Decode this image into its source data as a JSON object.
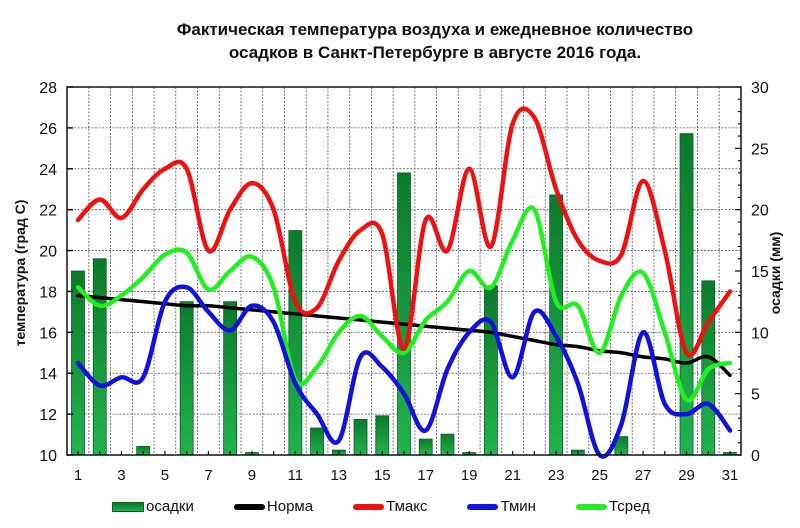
{
  "title": {
    "line1": "Фактическая температура воздуха и ежедневное количество",
    "line2": "осадков в Санкт-Петербурге  в августе  2016 года."
  },
  "axes": {
    "left_label": "температура (град С)",
    "right_label": "осадки (мм)",
    "left_ticks": [
      "10",
      "12",
      "14",
      "16",
      "18",
      "20",
      "22",
      "24",
      "26",
      "28"
    ],
    "right_ticks": [
      "0",
      "5",
      "10",
      "15",
      "20",
      "25",
      "30"
    ],
    "x_ticks": [
      "1",
      "3",
      "5",
      "7",
      "9",
      "11",
      "13",
      "15",
      "17",
      "19",
      "21",
      "23",
      "25",
      "27",
      "29",
      "31"
    ]
  },
  "legend": [
    {
      "label": "осадки",
      "color": "#159a3c",
      "kind": "bar"
    },
    {
      "label": "Норма",
      "color": "#000000",
      "kind": "line"
    },
    {
      "label": "Тмакс",
      "color": "#ee1111",
      "kind": "line"
    },
    {
      "label": "Тмин",
      "color": "#1111dd",
      "kind": "line"
    },
    {
      "label": "Тсред",
      "color": "#22ee22",
      "kind": "line"
    }
  ],
  "chart_data": {
    "type": "bar+line",
    "title": "Фактическая температура воздуха и ежедневное количество осадков в Санкт-Петербурге в августе 2016 года.",
    "xlabel": "",
    "ylabel": "температура (град С)",
    "y2label": "осадки (мм)",
    "ylim": [
      10,
      28
    ],
    "y2lim": [
      0,
      30
    ],
    "grid": true,
    "legend_position": "bottom",
    "x": [
      1,
      2,
      3,
      4,
      5,
      6,
      7,
      8,
      9,
      10,
      11,
      12,
      13,
      14,
      15,
      16,
      17,
      18,
      19,
      20,
      21,
      22,
      23,
      24,
      25,
      26,
      27,
      28,
      29,
      30,
      31
    ],
    "series": [
      {
        "name": "осадки",
        "type": "bar",
        "axis": "right",
        "color": "#159a3c",
        "values": [
          15,
          16,
          0,
          0.7,
          0,
          12.5,
          0,
          12.5,
          0.2,
          0,
          18.3,
          2.2,
          0.4,
          2.9,
          3.2,
          23,
          1.3,
          1.7,
          0.2,
          13.8,
          0,
          0,
          21.2,
          0.4,
          0,
          1.5,
          0,
          0,
          26.2,
          14.2,
          0.2
        ]
      },
      {
        "name": "Норма",
        "type": "line",
        "axis": "left",
        "color": "#000000",
        "values": [
          17.8,
          17.7,
          17.6,
          17.5,
          17.4,
          17.3,
          17.3,
          17.2,
          17.1,
          17.0,
          16.9,
          16.8,
          16.7,
          16.6,
          16.5,
          16.4,
          16.3,
          16.2,
          16.1,
          16.0,
          15.8,
          15.6,
          15.4,
          15.3,
          15.1,
          15.0,
          14.8,
          14.7,
          14.5,
          14.8,
          13.9
        ]
      },
      {
        "name": "Тмакс",
        "type": "line",
        "axis": "left",
        "color": "#ee1111",
        "values": [
          21.5,
          22.5,
          21.6,
          23.0,
          24.0,
          24.0,
          20.0,
          22.0,
          23.3,
          22.0,
          17.5,
          17.2,
          19.5,
          21.0,
          20.8,
          15.2,
          21.5,
          20.0,
          24.0,
          20.2,
          26.2,
          26.5,
          23.0,
          20.5,
          19.5,
          19.8,
          23.4,
          20.0,
          15.0,
          16.5,
          18.0
        ]
      },
      {
        "name": "Тмин",
        "type": "line",
        "axis": "left",
        "color": "#1111dd",
        "values": [
          14.5,
          13.4,
          13.8,
          13.8,
          17.5,
          18.2,
          17.0,
          16.1,
          17.3,
          16.5,
          13.5,
          12.0,
          10.7,
          14.8,
          14.3,
          13.0,
          11.2,
          14.2,
          16.0,
          16.5,
          13.8,
          17.0,
          15.8,
          13.5,
          10.0,
          11.5,
          16.0,
          12.5,
          12.0,
          12.5,
          11.2
        ]
      },
      {
        "name": "Тсред",
        "type": "line",
        "axis": "left",
        "color": "#22ee22",
        "values": [
          18.2,
          17.3,
          17.8,
          18.7,
          19.8,
          19.9,
          18.1,
          19.0,
          19.7,
          18.2,
          13.7,
          14.3,
          16.0,
          16.8,
          15.8,
          15.0,
          16.6,
          17.5,
          19.0,
          18.2,
          20.5,
          22.0,
          17.5,
          17.3,
          15.0,
          17.8,
          18.9,
          16.0,
          12.7,
          14.2,
          14.5
        ]
      }
    ]
  }
}
